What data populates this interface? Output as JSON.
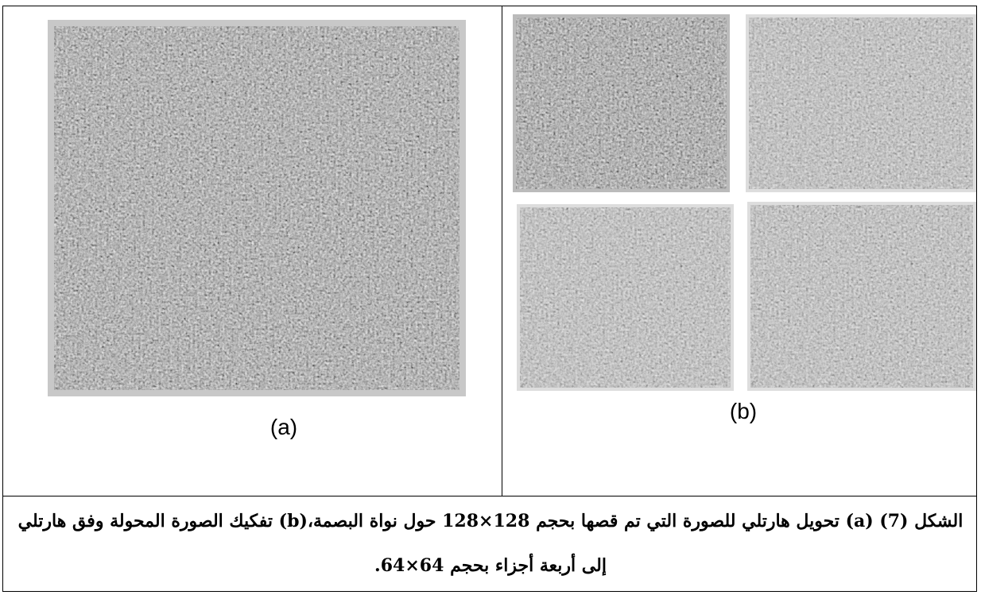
{
  "figure": {
    "panels": [
      {
        "label": "(a)"
      },
      {
        "label": "(b)"
      }
    ],
    "caption": "الشكل (7) (a) تحويل هارتلي للصورة التي تم قصها بحجم 128×128 حول نواة البصمة،(b) تفكيك الصورة المحولة وفق هارتلي إلى أربعة أجزاء بحجم 64×64."
  }
}
